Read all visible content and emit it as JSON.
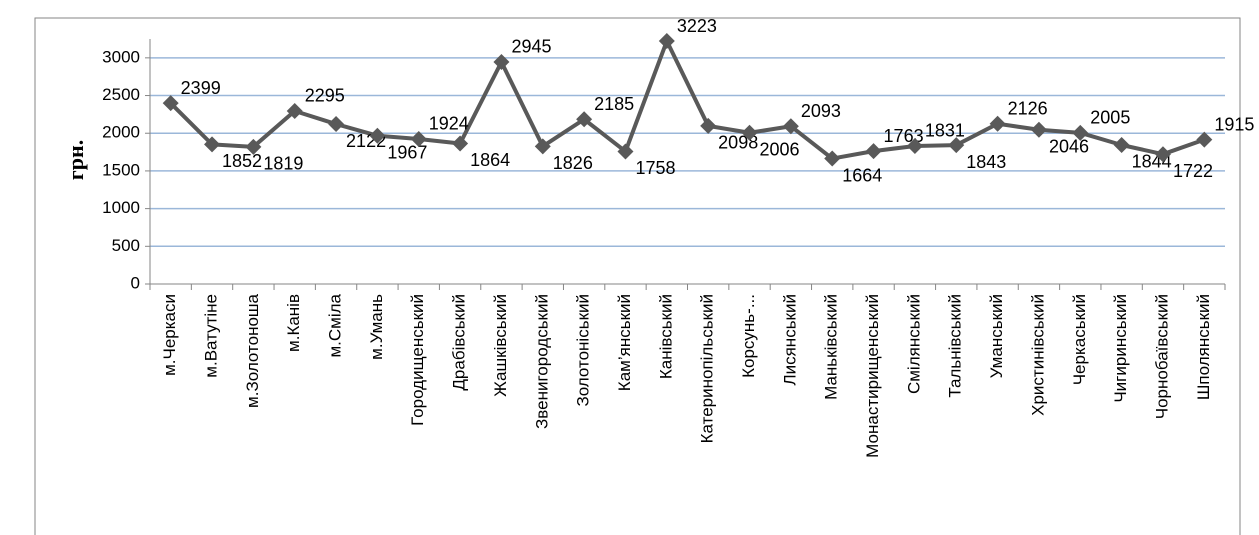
{
  "chart_data": {
    "type": "line",
    "y_label": "грн.",
    "categories": [
      "м.Черкаси",
      "м.Ватутіне",
      "м.Золотоноша",
      "м.Канів",
      "м.Сміла",
      "м.Умань",
      "Городищенський",
      "Драбівський",
      "Жашківський",
      "Звенигородський",
      "Золотоніський",
      "Кам’янський",
      "Канівський",
      "Катеринопільський",
      "Корсунь-...",
      "Лисянський",
      "Маньківський",
      "Монастирищенський",
      "Смілянський",
      "Тальнівський",
      "Уманський",
      "Христинівський",
      "Черкаський",
      "Чигиринський",
      "Чорнобаївський",
      "Шполянський"
    ],
    "values": [
      2399,
      1852,
      1819,
      2295,
      2122,
      1967,
      1924,
      1864,
      2945,
      1826,
      2185,
      1758,
      3223,
      2098,
      2006,
      2093,
      1664,
      1763,
      1831,
      1843,
      2126,
      2046,
      2005,
      1844,
      1722,
      1915
    ],
    "color": "#595959",
    "grid_color": "#9bb7d9",
    "ylim": [
      0,
      3250
    ],
    "yticks": [
      0,
      500,
      1000,
      1500,
      2000,
      2500,
      3000
    ],
    "grid": true
  }
}
